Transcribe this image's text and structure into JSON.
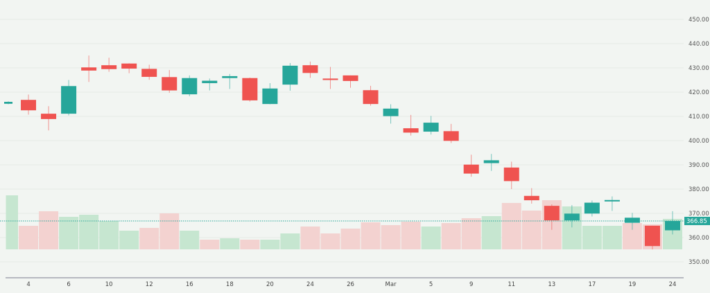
{
  "chart_data": {
    "type": "candlestick",
    "title": "",
    "xlabel": "",
    "ylabel": "",
    "ylim": [
      347,
      452
    ],
    "y_ticks": [
      "450.00",
      "440.00",
      "430.00",
      "420.00",
      "410.00",
      "400.00",
      "390.00",
      "380.00",
      "370.00",
      "360.00",
      "350.00"
    ],
    "y_tick_values": [
      450,
      440,
      430,
      420,
      410,
      400,
      390,
      380,
      370,
      360,
      350
    ],
    "x_ticks": [
      {
        "index": 1,
        "label": "4"
      },
      {
        "index": 3,
        "label": "6"
      },
      {
        "index": 5,
        "label": "10"
      },
      {
        "index": 7,
        "label": "12"
      },
      {
        "index": 9,
        "label": "16"
      },
      {
        "index": 11,
        "label": "18"
      },
      {
        "index": 13,
        "label": "20"
      },
      {
        "index": 15,
        "label": "24"
      },
      {
        "index": 17,
        "label": "26"
      },
      {
        "index": 19,
        "label": "Mar"
      },
      {
        "index": 21,
        "label": "5"
      },
      {
        "index": 23,
        "label": "9"
      },
      {
        "index": 25,
        "label": "11"
      },
      {
        "index": 27,
        "label": "13"
      },
      {
        "index": 29,
        "label": "17"
      },
      {
        "index": 31,
        "label": "19"
      },
      {
        "index": 33,
        "label": "24"
      }
    ],
    "grid": true,
    "last_price": 366.85,
    "last_price_label": "366.85",
    "colors": {
      "up": "#26a69a",
      "down": "#ef5350",
      "up_volume": "#c6e6d0",
      "down_volume": "#f3d2d0",
      "background": "#f2f5f2"
    },
    "candles": [
      {
        "o": 415.2,
        "h": 416.2,
        "l": 415.0,
        "c": 416.0
      },
      {
        "o": 416.8,
        "h": 419.0,
        "l": 410.7,
        "c": 412.5
      },
      {
        "o": 411.1,
        "h": 414.2,
        "l": 404.2,
        "c": 408.9
      },
      {
        "o": 411.1,
        "h": 425.0,
        "l": 410.4,
        "c": 422.5
      },
      {
        "o": 430.2,
        "h": 435.1,
        "l": 424.2,
        "c": 428.9
      },
      {
        "o": 431.1,
        "h": 434.2,
        "l": 428.4,
        "c": 429.5
      },
      {
        "o": 431.8,
        "h": 431.9,
        "l": 427.8,
        "c": 429.7
      },
      {
        "o": 429.6,
        "h": 431.3,
        "l": 425.1,
        "c": 426.3
      },
      {
        "o": 426.2,
        "h": 429.1,
        "l": 419.7,
        "c": 420.7
      },
      {
        "o": 419.1,
        "h": 426.9,
        "l": 418.3,
        "c": 425.8
      },
      {
        "o": 423.7,
        "h": 425.6,
        "l": 420.7,
        "c": 424.7
      },
      {
        "o": 425.8,
        "h": 427.5,
        "l": 421.3,
        "c": 426.6
      },
      {
        "o": 425.8,
        "h": 426.0,
        "l": 416.1,
        "c": 416.6
      },
      {
        "o": 415.1,
        "h": 423.7,
        "l": 415.0,
        "c": 421.5
      },
      {
        "o": 423.1,
        "h": 432.0,
        "l": 420.6,
        "c": 430.9
      },
      {
        "o": 431.1,
        "h": 432.6,
        "l": 425.9,
        "c": 427.9
      },
      {
        "o": 425.6,
        "h": 430.4,
        "l": 421.3,
        "c": 425.0
      },
      {
        "o": 426.9,
        "h": 426.9,
        "l": 421.8,
        "c": 424.6
      },
      {
        "o": 420.8,
        "h": 422.6,
        "l": 414.4,
        "c": 415.1
      },
      {
        "o": 410.1,
        "h": 415.0,
        "l": 407.0,
        "c": 413.2
      },
      {
        "o": 405.1,
        "h": 410.6,
        "l": 402.1,
        "c": 403.3
      },
      {
        "o": 403.7,
        "h": 410.2,
        "l": 402.5,
        "c": 407.4
      },
      {
        "o": 403.9,
        "h": 406.9,
        "l": 399.0,
        "c": 399.9
      },
      {
        "o": 390.1,
        "h": 394.2,
        "l": 385.1,
        "c": 386.4
      },
      {
        "o": 390.7,
        "h": 394.5,
        "l": 387.5,
        "c": 391.9
      },
      {
        "o": 388.9,
        "h": 391.3,
        "l": 380.0,
        "c": 383.3
      },
      {
        "o": 377.2,
        "h": 380.4,
        "l": 374.0,
        "c": 375.4
      },
      {
        "o": 373.1,
        "h": 373.7,
        "l": 363.2,
        "c": 367.1
      },
      {
        "o": 367.1,
        "h": 373.4,
        "l": 364.2,
        "c": 369.9
      },
      {
        "o": 369.9,
        "h": 375.3,
        "l": 368.7,
        "c": 374.4
      },
      {
        "o": 374.9,
        "h": 377.0,
        "l": 371.0,
        "c": 375.5
      },
      {
        "o": 366.1,
        "h": 370.2,
        "l": 363.2,
        "c": 368.2
      },
      {
        "o": 364.9,
        "h": 364.9,
        "l": 355.1,
        "c": 356.5
      },
      {
        "o": 363.0,
        "h": 370.9,
        "l": 361.3,
        "c": 366.85
      }
    ],
    "volume": [
      {
        "v": 78,
        "up": true
      },
      {
        "v": 34,
        "up": false
      },
      {
        "v": 55,
        "up": false
      },
      {
        "v": 47,
        "up": true
      },
      {
        "v": 50,
        "up": true
      },
      {
        "v": 41,
        "up": true
      },
      {
        "v": 27,
        "up": true
      },
      {
        "v": 31,
        "up": false
      },
      {
        "v": 52,
        "up": false
      },
      {
        "v": 27,
        "up": true
      },
      {
        "v": 14,
        "up": false
      },
      {
        "v": 16,
        "up": true
      },
      {
        "v": 14,
        "up": false
      },
      {
        "v": 14,
        "up": true
      },
      {
        "v": 23,
        "up": true
      },
      {
        "v": 33,
        "up": false
      },
      {
        "v": 23,
        "up": false
      },
      {
        "v": 30,
        "up": false
      },
      {
        "v": 39,
        "up": false
      },
      {
        "v": 35,
        "up": false
      },
      {
        "v": 40,
        "up": false
      },
      {
        "v": 33,
        "up": true
      },
      {
        "v": 38,
        "up": false
      },
      {
        "v": 45,
        "up": false
      },
      {
        "v": 48,
        "up": true
      },
      {
        "v": 67,
        "up": false
      },
      {
        "v": 56,
        "up": false
      },
      {
        "v": 71,
        "up": false
      },
      {
        "v": 62,
        "up": true
      },
      {
        "v": 34,
        "up": true
      },
      {
        "v": 34,
        "up": true
      },
      {
        "v": 38,
        "up": false
      },
      {
        "v": 36,
        "up": false
      },
      {
        "v": 44,
        "up": true
      }
    ]
  }
}
